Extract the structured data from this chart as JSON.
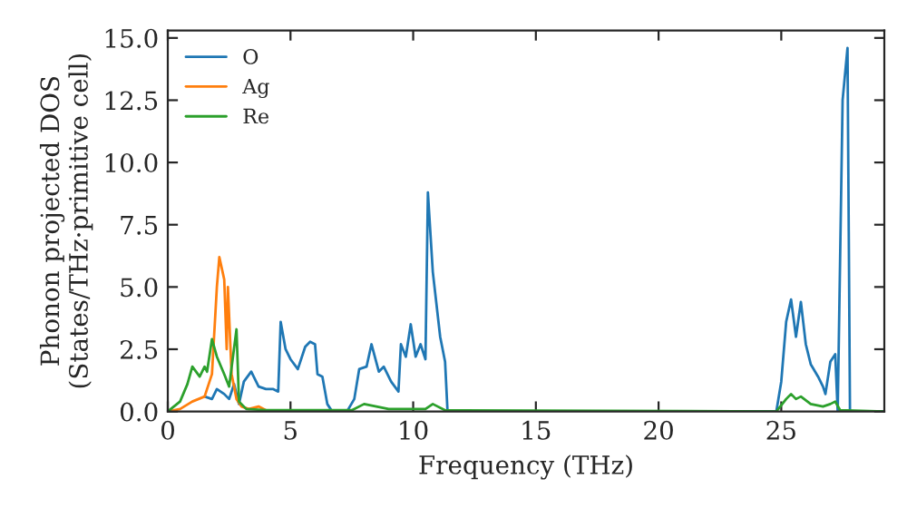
{
  "chart_data": {
    "type": "line",
    "xlabel": "Frequency (THz)",
    "ylabel": "Phonon projected DOS\n(States/THz·primitive cell)",
    "xlim": [
      0,
      29.2
    ],
    "ylim": [
      0,
      15.3
    ],
    "xticks": [
      0,
      5,
      10,
      15,
      20,
      25
    ],
    "yticks": [
      {
        "value": 0,
        "label": "0.0"
      },
      {
        "value": 2.5,
        "label": "2.5"
      },
      {
        "value": 5,
        "label": "5.0"
      },
      {
        "value": 7.5,
        "label": "7.5"
      },
      {
        "value": 10,
        "label": "10.0"
      },
      {
        "value": 12.5,
        "label": "12.5"
      },
      {
        "value": 15,
        "label": "15.0"
      }
    ],
    "legend": "top left",
    "grid": false,
    "series": [
      {
        "name": "O",
        "color": "#1f77b4",
        "x": [
          1.5,
          1.8,
          2.0,
          2.3,
          2.5,
          2.7,
          2.9,
          3.1,
          3.4,
          3.7,
          4.0,
          4.3,
          4.5,
          4.6,
          4.8,
          5.0,
          5.3,
          5.6,
          5.8,
          6.0,
          6.1,
          6.3,
          6.5,
          6.7,
          7.3,
          7.6,
          7.8,
          8.1,
          8.3,
          8.6,
          8.8,
          9.1,
          9.4,
          9.5,
          9.7,
          9.9,
          10.1,
          10.3,
          10.5,
          10.6,
          10.8,
          11.1,
          11.3,
          11.4,
          24.8,
          25.0,
          25.2,
          25.4,
          25.6,
          25.8,
          26.0,
          26.2,
          26.5,
          26.7,
          26.8,
          27.0,
          27.2,
          27.3,
          27.5,
          27.7,
          27.8,
          29.2
        ],
        "values": [
          0.6,
          0.5,
          0.9,
          0.7,
          0.5,
          1.1,
          0.3,
          1.2,
          1.6,
          1.0,
          0.9,
          0.9,
          0.8,
          3.6,
          2.5,
          2.1,
          1.7,
          2.6,
          2.8,
          2.7,
          1.5,
          1.4,
          0.3,
          0,
          0,
          0.5,
          1.7,
          1.8,
          2.7,
          1.6,
          1.8,
          1.2,
          0.8,
          2.7,
          2.2,
          3.5,
          2.2,
          2.7,
          2.1,
          8.8,
          5.6,
          3.0,
          2.0,
          0,
          0,
          1.2,
          3.6,
          4.5,
          3.0,
          4.4,
          2.7,
          1.9,
          1.4,
          1.0,
          0.7,
          2.0,
          2.3,
          0,
          12.5,
          14.6,
          0,
          0
        ]
      },
      {
        "name": "Ag",
        "color": "#ff7f0e",
        "x": [
          0,
          0.5,
          1.0,
          1.5,
          1.8,
          2.0,
          2.1,
          2.3,
          2.4,
          2.45,
          2.6,
          2.8,
          3.0,
          3.3,
          3.7,
          4.0
        ],
        "values": [
          0,
          0.1,
          0.4,
          0.6,
          1.5,
          5.0,
          6.2,
          5.3,
          2.5,
          5.0,
          1.5,
          0.5,
          0.2,
          0.1,
          0.2,
          0.05
        ]
      },
      {
        "name": "Re",
        "color": "#2ca02c",
        "x": [
          0,
          0.5,
          0.8,
          1.0,
          1.3,
          1.5,
          1.6,
          1.8,
          2.0,
          2.3,
          2.5,
          2.8,
          2.9,
          3.2,
          4.0,
          7.5,
          8.0,
          8.5,
          9.0,
          10.5,
          10.8,
          11.3,
          24.8,
          25.2,
          25.4,
          25.6,
          25.8,
          26.2,
          26.7,
          27.0,
          27.2,
          27.4,
          29.2
        ],
        "values": [
          0,
          0.4,
          1.1,
          1.8,
          1.4,
          1.8,
          1.6,
          2.9,
          2.2,
          1.5,
          1.0,
          3.3,
          0.4,
          0.1,
          0.05,
          0.05,
          0.3,
          0.2,
          0.1,
          0.1,
          0.3,
          0.05,
          0,
          0.5,
          0.7,
          0.5,
          0.6,
          0.3,
          0.2,
          0.3,
          0.4,
          0.05,
          0
        ]
      }
    ]
  }
}
